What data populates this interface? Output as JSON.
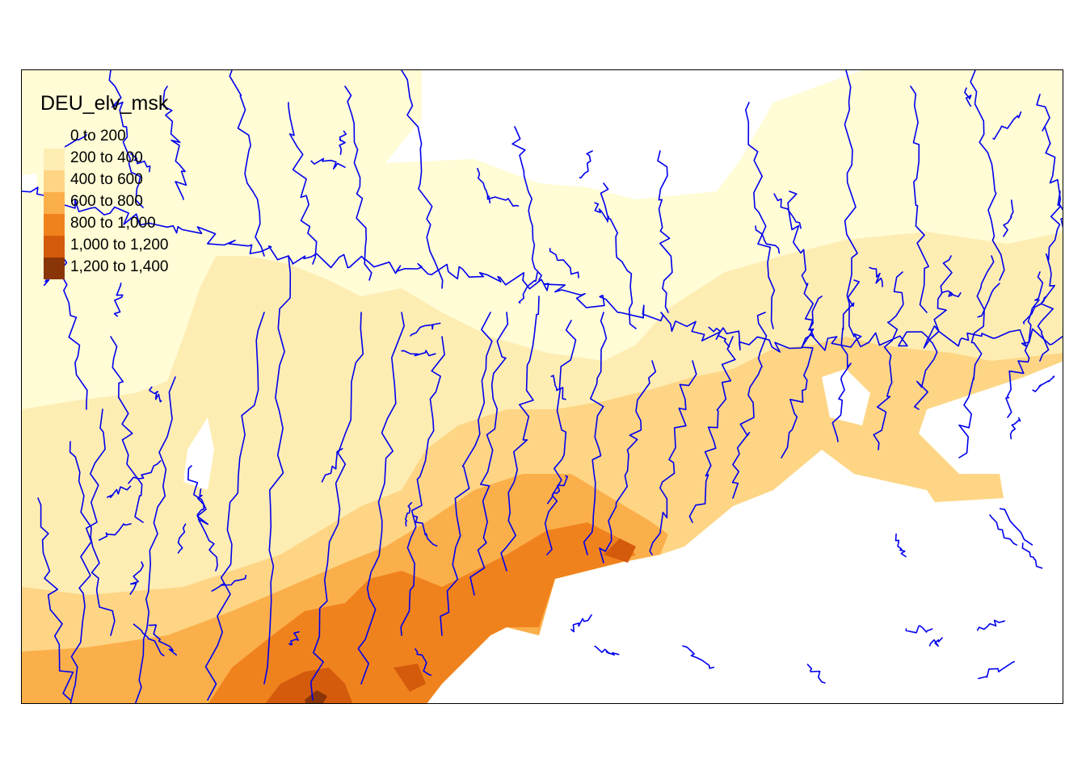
{
  "map": {
    "legend": {
      "title": "DEU_elv_msk",
      "classes": [
        {
          "label": "0 to 200",
          "color": "#FFFCD6"
        },
        {
          "label": "200 to 400",
          "color": "#FEEDB2"
        },
        {
          "label": "400 to 600",
          "color": "#FDD585"
        },
        {
          "label": "600 to 800",
          "color": "#FBAF4A"
        },
        {
          "label": "800 to 1,000",
          "color": "#F0821E"
        },
        {
          "label": "1,000 to 1,200",
          "color": "#D45A0C"
        },
        {
          "label": "1,200 to 1,400",
          "color": "#8A3507"
        }
      ]
    },
    "river_color": "#0000EE"
  }
}
